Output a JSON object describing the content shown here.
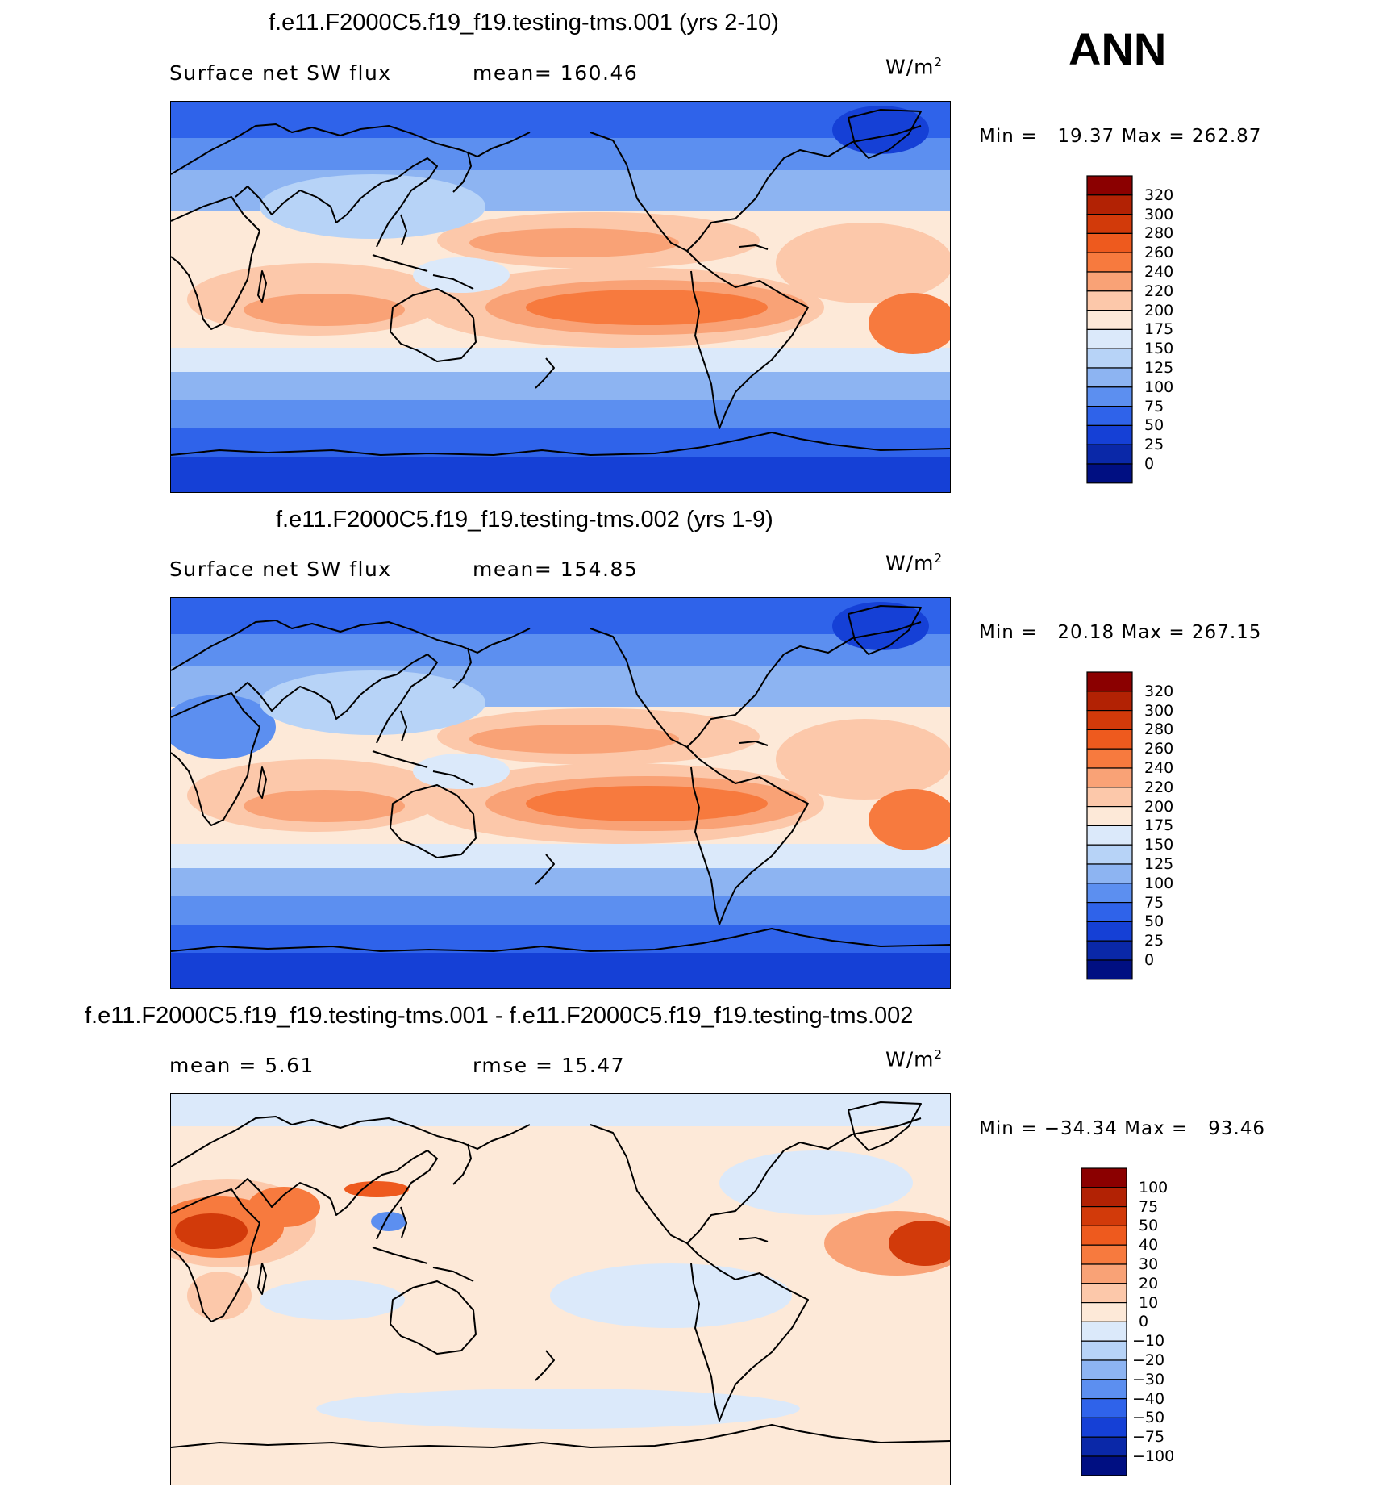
{
  "annotation": "ANN",
  "panels": [
    {
      "title": "f.e11.F2000C5.f19_f19.testing-tms.001 (yrs 2-10)",
      "left_label": "Surface net SW flux",
      "center_label": "mean= 160.46",
      "units": "W/m",
      "units_sup": "2",
      "minmax": "Min =   19.37 Max = 262.87",
      "colorbar": {
        "levels": [
          "320",
          "300",
          "280",
          "260",
          "240",
          "220",
          "200",
          "175",
          "150",
          "125",
          "100",
          "75",
          "50",
          "25",
          "0"
        ],
        "colors": [
          "#8b0000",
          "#b22204",
          "#d23a0a",
          "#ee5a1e",
          "#f77a3e",
          "#f9a276",
          "#fcc8aa",
          "#fde9d8",
          "#dbe9fa",
          "#b7d3f7",
          "#8db4f2",
          "#5c8ff0",
          "#2f63ea",
          "#1540d6",
          "#0a28a8",
          "#000f82"
        ]
      }
    },
    {
      "title": "f.e11.F2000C5.f19_f19.testing-tms.002 (yrs 1-9)",
      "left_label": "Surface net SW flux",
      "center_label": "mean= 154.85",
      "units": "W/m",
      "units_sup": "2",
      "minmax": "Min =   20.18 Max = 267.15",
      "colorbar": {
        "levels": [
          "320",
          "300",
          "280",
          "260",
          "240",
          "220",
          "200",
          "175",
          "150",
          "125",
          "100",
          "75",
          "50",
          "25",
          "0"
        ],
        "colors": [
          "#8b0000",
          "#b22204",
          "#d23a0a",
          "#ee5a1e",
          "#f77a3e",
          "#f9a276",
          "#fcc8aa",
          "#fde9d8",
          "#dbe9fa",
          "#b7d3f7",
          "#8db4f2",
          "#5c8ff0",
          "#2f63ea",
          "#1540d6",
          "#0a28a8",
          "#000f82"
        ]
      }
    },
    {
      "title": "f.e11.F2000C5.f19_f19.testing-tms.001 - f.e11.F2000C5.f19_f19.testing-tms.002",
      "left_label": "mean =    5.61",
      "center_label": "rmse =   15.47",
      "units": "W/m",
      "units_sup": "2",
      "minmax": "Min = −34.34 Max =   93.46",
      "colorbar": {
        "levels": [
          "100",
          "75",
          "50",
          "40",
          "30",
          "20",
          "10",
          "0",
          "−10",
          "−20",
          "−30",
          "−40",
          "−50",
          "−75",
          "−100"
        ],
        "colors": [
          "#8b0000",
          "#b22204",
          "#d23a0a",
          "#ee5a1e",
          "#f77a3e",
          "#f9a276",
          "#fcc8aa",
          "#fde9d8",
          "#dbe9fa",
          "#b7d3f7",
          "#8db4f2",
          "#5c8ff0",
          "#2f63ea",
          "#1540d6",
          "#0a28a8",
          "#000f82"
        ]
      }
    }
  ]
}
